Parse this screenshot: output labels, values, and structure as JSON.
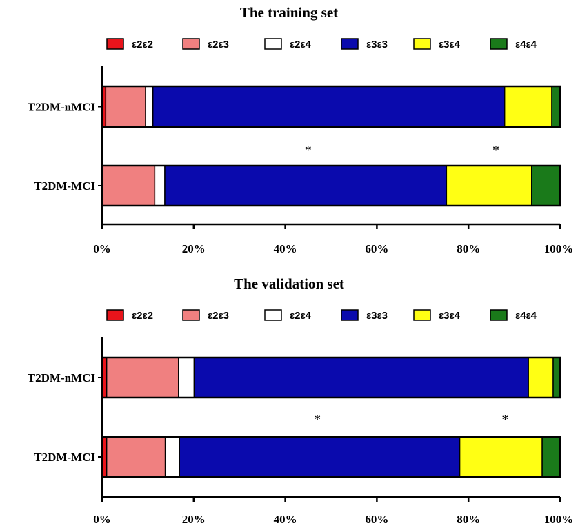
{
  "chart_data": [
    {
      "type": "bar",
      "orientation": "horizontal",
      "stacked": true,
      "title": "The training set",
      "categories": [
        "T2DM-nMCI",
        "T2DM-MCI"
      ],
      "xlim": [
        0,
        100
      ],
      "xticks": [
        "0%",
        "20%",
        "40%",
        "60%",
        "80%",
        "100%"
      ],
      "legend": "top",
      "grid": false,
      "series": [
        {
          "name": "ε2ε2",
          "color": "#e8141b",
          "values": [
            0.8,
            0.0
          ]
        },
        {
          "name": "ε2ε3",
          "color": "#f08080",
          "values": [
            8.7,
            11.5
          ]
        },
        {
          "name": "ε2ε4",
          "color": "#ffffff",
          "values": [
            1.6,
            2.2
          ]
        },
        {
          "name": "ε3ε3",
          "color": "#0a0aad",
          "values": [
            76.8,
            61.5
          ]
        },
        {
          "name": "ε3ε4",
          "color": "#ffff14",
          "values": [
            10.3,
            18.6
          ]
        },
        {
          "name": "ε4ε4",
          "color": "#1a7a1a",
          "values": [
            1.8,
            6.2
          ]
        }
      ],
      "annotations": [
        {
          "text": "*",
          "x": 45
        },
        {
          "text": "*",
          "x": 86
        }
      ]
    },
    {
      "type": "bar",
      "orientation": "horizontal",
      "stacked": true,
      "title": "The validation set",
      "categories": [
        "T2DM-nMCI",
        "T2DM-MCI"
      ],
      "xlim": [
        0,
        100
      ],
      "xticks": [
        "0%",
        "20%",
        "40%",
        "60%",
        "80%",
        "100%"
      ],
      "legend": "top",
      "grid": false,
      "series": [
        {
          "name": "ε2ε2",
          "color": "#e8141b",
          "values": [
            1.0,
            1.0
          ]
        },
        {
          "name": "ε2ε3",
          "color": "#f08080",
          "values": [
            15.7,
            12.8
          ]
        },
        {
          "name": "ε2ε4",
          "color": "#ffffff",
          "values": [
            3.4,
            3.1
          ]
        },
        {
          "name": "ε3ε3",
          "color": "#0a0aad",
          "values": [
            73.0,
            61.2
          ]
        },
        {
          "name": "ε3ε4",
          "color": "#ffff14",
          "values": [
            5.4,
            18.0
          ]
        },
        {
          "name": "ε4ε4",
          "color": "#1a7a1a",
          "values": [
            1.5,
            3.9
          ]
        }
      ],
      "annotations": [
        {
          "text": "*",
          "x": 47
        },
        {
          "text": "*",
          "x": 88
        }
      ]
    }
  ]
}
